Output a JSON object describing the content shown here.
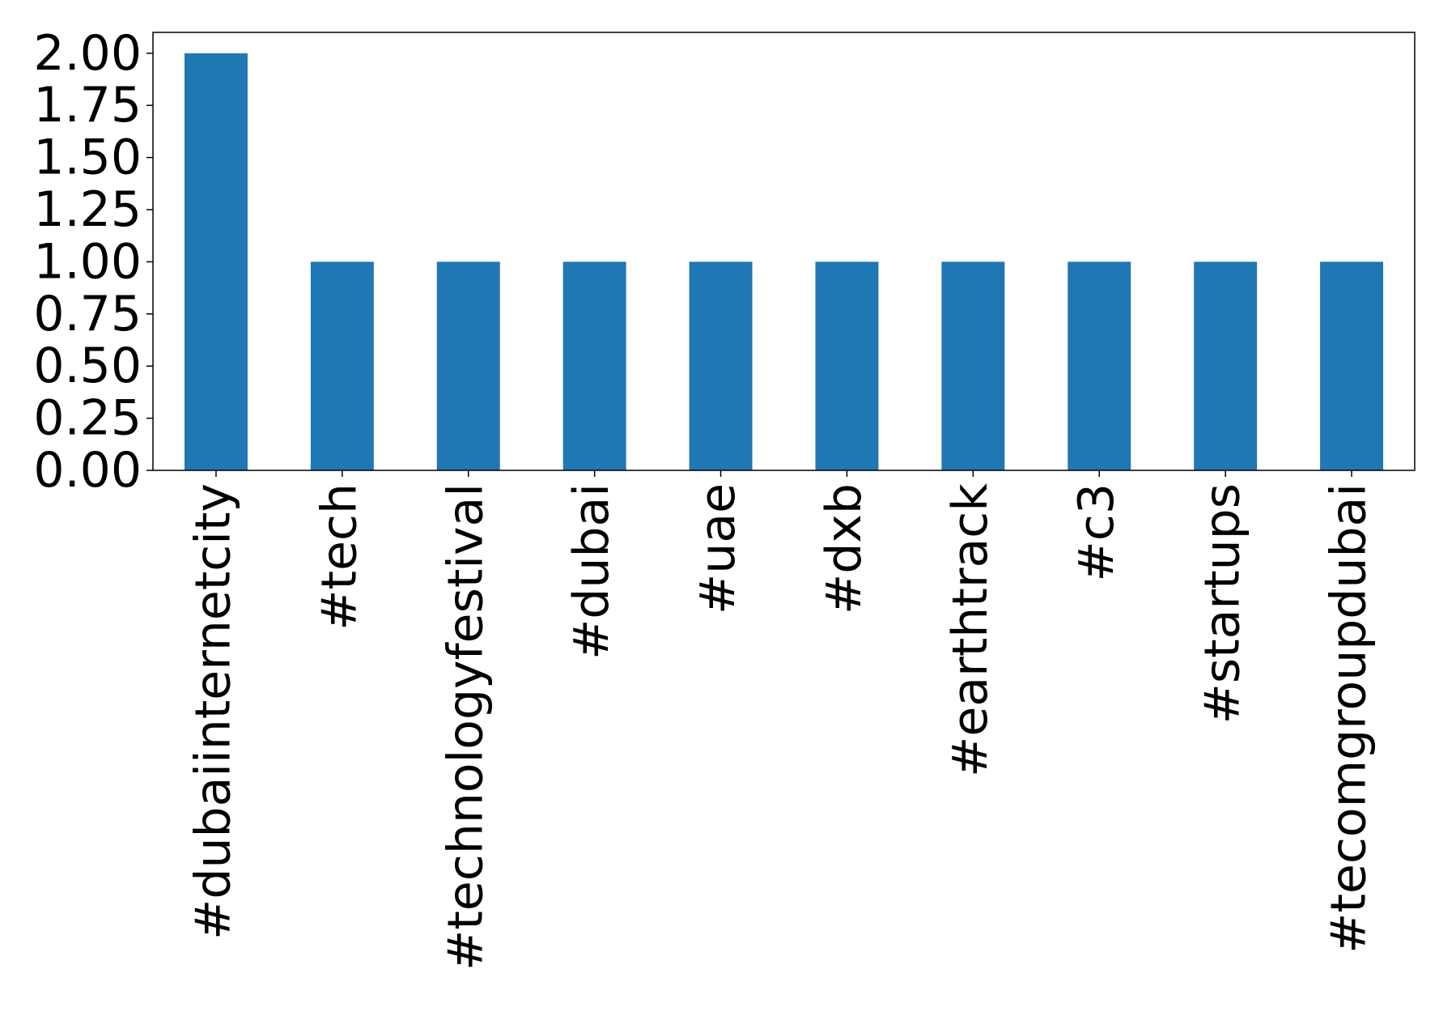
{
  "chart_data": {
    "type": "bar",
    "categories": [
      "#dubaiinternetcity",
      "#tech",
      "#technologyfestival",
      "#dubai",
      "#uae",
      "#dxb",
      "#earthtrack",
      "#c3",
      "#startups",
      "#tecomgroupdubai"
    ],
    "values": [
      2,
      1,
      1,
      1,
      1,
      1,
      1,
      1,
      1,
      1
    ],
    "color": "#1f77b4",
    "ylim": [
      0,
      2.1
    ],
    "yticks": [
      {
        "value": 0,
        "label": "0.00"
      },
      {
        "value": 0.25,
        "label": "0.25"
      },
      {
        "value": 0.5,
        "label": "0.50"
      },
      {
        "value": 0.75,
        "label": "0.75"
      },
      {
        "value": 1,
        "label": "1.00"
      },
      {
        "value": 1.25,
        "label": "1.25"
      },
      {
        "value": 1.5,
        "label": "1.50"
      },
      {
        "value": 1.75,
        "label": "1.75"
      },
      {
        "value": 2,
        "label": "2.00"
      }
    ],
    "grid": false
  }
}
